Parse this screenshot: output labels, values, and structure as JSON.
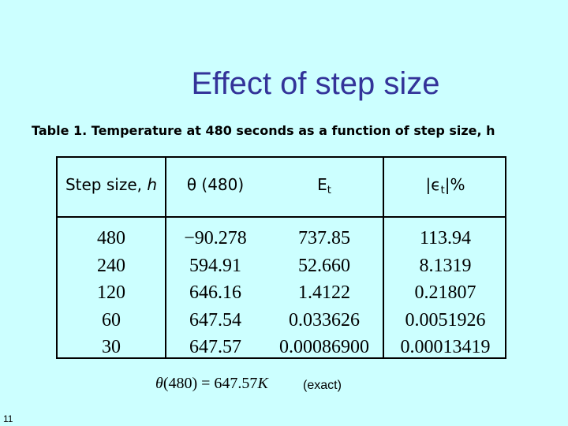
{
  "slide": {
    "title": "Effect of step size",
    "caption": "Table 1. Temperature at 480 seconds as a function of step size, h",
    "page_number": "11"
  },
  "table": {
    "headers": {
      "step_label": "Step size, ",
      "step_var": "h",
      "theta": "θ (480)",
      "et_main": "E",
      "et_sub": "t",
      "rel_pre": "|ϵ",
      "rel_sub": "t",
      "rel_post": "|%"
    },
    "rows": [
      {
        "h": "480",
        "theta": "−90.278",
        "et": "737.85",
        "rel": "113.94"
      },
      {
        "h": "240",
        "theta": "594.91",
        "et": "52.660",
        "rel": "8.1319"
      },
      {
        "h": "120",
        "theta": "646.16",
        "et": "1.4122",
        "rel": "0.21807"
      },
      {
        "h": "60",
        "theta": "647.54",
        "et": "0.033626",
        "rel": "0.0051926"
      },
      {
        "h": "30",
        "theta": "647.57",
        "et": "0.00086900",
        "rel": "0.00013419"
      }
    ]
  },
  "exact": {
    "theta_symbol": "θ",
    "formula_mid": "(480) = 647.57",
    "unit": "K",
    "note": "(exact)"
  }
}
